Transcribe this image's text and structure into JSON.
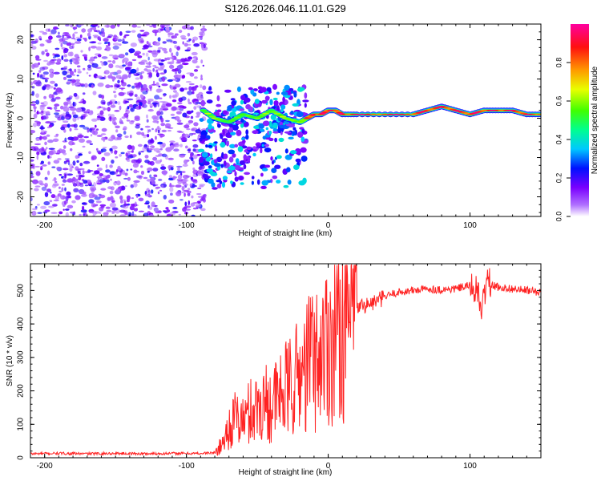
{
  "figure_title": "S126.2026.046.11.01.G29",
  "colors": {
    "snr_line": "#ff2222",
    "frame": "#000000",
    "background": "#ffffff"
  },
  "chart_data": [
    {
      "type": "heatmap",
      "name": "spectrogram",
      "title": "S126.2026.046.11.01.G29",
      "xlabel": "Height of straight line (km)",
      "ylabel": "Frequency (Hz)",
      "xlim": [
        -210,
        150
      ],
      "ylim": [
        -25,
        24
      ],
      "xticks": [
        -200,
        -100,
        0,
        100
      ],
      "yticks": [
        -20,
        -10,
        0,
        10,
        20
      ],
      "grid": false,
      "colorbar": {
        "label": "Normalized spectral amplitude",
        "range": [
          0,
          1
        ],
        "ticks": [
          "0.0",
          "0.2",
          "0.4",
          "0.6",
          "0.8"
        ],
        "tick_values": [
          0,
          0.2,
          0.4,
          0.6,
          0.8
        ],
        "colormap": [
          "#ffffff",
          "#8000ff",
          "#0000ff",
          "#00ffff",
          "#00ff00",
          "#ffff00",
          "#ff8000",
          "#ff0000",
          "#ff00aa"
        ]
      },
      "regions": [
        {
          "label": "noise",
          "x_range": [
            -210,
            -87
          ],
          "y_range": [
            -25,
            24
          ],
          "amplitude": [
            0.05,
            0.25
          ]
        },
        {
          "label": "transition",
          "x_range": [
            -90,
            -15
          ],
          "y_range": [
            -18,
            8
          ],
          "amplitude": [
            0.1,
            0.4
          ]
        },
        {
          "label": "carrier",
          "x_range": [
            -20,
            150
          ],
          "y_range": [
            0,
            3
          ],
          "amplitude": [
            0.3,
            0.95
          ]
        }
      ],
      "carrier_track": [
        {
          "x": -88,
          "y": 2
        },
        {
          "x": -80,
          "y": 0
        },
        {
          "x": -70,
          "y": -1
        },
        {
          "x": -60,
          "y": 1
        },
        {
          "x": -50,
          "y": 0
        },
        {
          "x": -40,
          "y": 2
        },
        {
          "x": -30,
          "y": 0
        },
        {
          "x": -20,
          "y": -1
        },
        {
          "x": -15,
          "y": 0
        },
        {
          "x": -10,
          "y": 1
        },
        {
          "x": -5,
          "y": 1
        },
        {
          "x": 0,
          "y": 2
        },
        {
          "x": 5,
          "y": 2
        },
        {
          "x": 10,
          "y": 1
        },
        {
          "x": 20,
          "y": 1
        },
        {
          "x": 40,
          "y": 1
        },
        {
          "x": 60,
          "y": 1
        },
        {
          "x": 70,
          "y": 2
        },
        {
          "x": 80,
          "y": 3
        },
        {
          "x": 90,
          "y": 2
        },
        {
          "x": 100,
          "y": 1
        },
        {
          "x": 110,
          "y": 2
        },
        {
          "x": 120,
          "y": 2
        },
        {
          "x": 130,
          "y": 2
        },
        {
          "x": 140,
          "y": 1
        },
        {
          "x": 150,
          "y": 1
        }
      ]
    },
    {
      "type": "line",
      "name": "snr",
      "xlabel": "Height of straight line (km)",
      "ylabel": "SNR (10 * v/v)",
      "xlim": [
        -210,
        150
      ],
      "ylim": [
        0,
        580
      ],
      "xticks": [
        -200,
        -100,
        0,
        100
      ],
      "yticks": [
        0,
        100,
        200,
        300,
        400,
        500
      ],
      "grid": false,
      "x": [
        -210,
        -190,
        -170,
        -150,
        -130,
        -110,
        -90,
        -80,
        -75,
        -70,
        -65,
        -60,
        -55,
        -50,
        -45,
        -40,
        -35,
        -30,
        -25,
        -20,
        -15,
        -12,
        -10,
        -5,
        0,
        5,
        10,
        15,
        20,
        25,
        30,
        35,
        40,
        45,
        50,
        60,
        70,
        80,
        90,
        95,
        100,
        105,
        108,
        110,
        112,
        115,
        120,
        130,
        140,
        150
      ],
      "y": [
        12,
        13,
        12,
        13,
        12,
        13,
        13,
        15,
        40,
        90,
        120,
        110,
        140,
        150,
        170,
        160,
        180,
        200,
        220,
        250,
        270,
        330,
        280,
        320,
        350,
        370,
        400,
        430,
        450,
        455,
        460,
        470,
        480,
        490,
        495,
        500,
        505,
        502,
        505,
        510,
        515,
        500,
        440,
        480,
        540,
        515,
        510,
        505,
        500,
        495
      ]
    }
  ]
}
